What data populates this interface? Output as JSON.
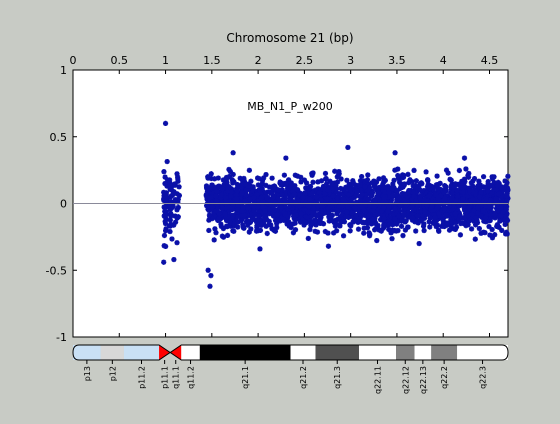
{
  "chart_data": {
    "type": "scatter",
    "title": "Chromosome 21 (bp)",
    "series_label": "MB_N1_P_w200",
    "xlim": [
      0,
      4.7
    ],
    "ylim": [
      -1,
      1
    ],
    "xticks": [
      {
        "value": 0,
        "label": "0"
      },
      {
        "value": 0.5,
        "label": "0.5"
      },
      {
        "value": 1,
        "label": "1"
      },
      {
        "value": 1.5,
        "label": "1.5"
      },
      {
        "value": 2,
        "label": "2"
      },
      {
        "value": 2.5,
        "label": "2.5"
      },
      {
        "value": 3,
        "label": "3"
      },
      {
        "value": 3.5,
        "label": "3.5"
      },
      {
        "value": 4,
        "label": "4"
      },
      {
        "value": 4.5,
        "label": "4.5"
      }
    ],
    "yticks": [
      {
        "value": 1,
        "label": "1"
      },
      {
        "value": 0.5,
        "label": "0.5"
      },
      {
        "value": 0,
        "label": "0"
      },
      {
        "value": -0.5,
        "label": "-0.5"
      },
      {
        "value": -1,
        "label": "-1"
      }
    ],
    "baseline": 0,
    "marker_color": "#0a10a8",
    "baseline_color": "#8a8a9a",
    "point_clusters": [
      {
        "x_range": [
          0.98,
          1.02
        ],
        "y_range": [
          -0.42,
          0.38
        ],
        "count": 40
      },
      {
        "x_range": [
          1.04,
          1.15
        ],
        "y_range": [
          -0.38,
          0.38
        ],
        "count": 60
      },
      {
        "x_range": [
          1.44,
          4.7
        ],
        "y_range": [
          -0.28,
          0.28
        ],
        "count": 2600
      }
    ],
    "outliers": [
      {
        "x": 1.0,
        "y": 0.6
      },
      {
        "x": 0.98,
        "y": -0.44
      },
      {
        "x": 1.09,
        "y": -0.42
      },
      {
        "x": 1.49,
        "y": -0.54
      },
      {
        "x": 1.48,
        "y": -0.62
      },
      {
        "x": 1.46,
        "y": -0.5
      },
      {
        "x": 2.97,
        "y": 0.42
      },
      {
        "x": 1.73,
        "y": 0.38
      },
      {
        "x": 2.3,
        "y": 0.34
      },
      {
        "x": 3.48,
        "y": 0.38
      },
      {
        "x": 4.23,
        "y": 0.34
      },
      {
        "x": 2.02,
        "y": -0.34
      },
      {
        "x": 2.76,
        "y": -0.32
      },
      {
        "x": 3.74,
        "y": -0.3
      }
    ],
    "ideogram": {
      "bands": [
        {
          "label": "p13",
          "start": 0.0,
          "end": 0.3,
          "color": "#c9e0f5"
        },
        {
          "label": "p12",
          "start": 0.3,
          "end": 0.55,
          "color": "#d8d8d8"
        },
        {
          "label": "p11.2",
          "start": 0.55,
          "end": 0.93,
          "color": "#c9e0f5"
        },
        {
          "label": "p11.1",
          "start": 0.93,
          "end": 1.05,
          "color": "#ff0000",
          "centromere": "p"
        },
        {
          "label": "q11.1",
          "start": 1.05,
          "end": 1.17,
          "color": "#ff0000",
          "centromere": "q"
        },
        {
          "label": "q11.2",
          "start": 1.17,
          "end": 1.37,
          "color": "#ffffff"
        },
        {
          "label": "q21.1",
          "start": 1.37,
          "end": 2.35,
          "color": "#000000"
        },
        {
          "label": "q21.2",
          "start": 2.35,
          "end": 2.62,
          "color": "#ffffff"
        },
        {
          "label": "q21.3",
          "start": 2.62,
          "end": 3.09,
          "color": "#505050"
        },
        {
          "label": "q22.11",
          "start": 3.09,
          "end": 3.49,
          "color": "#ffffff"
        },
        {
          "label": "q22.12",
          "start": 3.49,
          "end": 3.69,
          "color": "#808080"
        },
        {
          "label": "q22.13",
          "start": 3.69,
          "end": 3.87,
          "color": "#ffffff"
        },
        {
          "label": "q22.2",
          "start": 3.87,
          "end": 4.15,
          "color": "#808080"
        },
        {
          "label": "q22.3",
          "start": 4.15,
          "end": 4.7,
          "color": "#ffffff"
        }
      ]
    }
  }
}
